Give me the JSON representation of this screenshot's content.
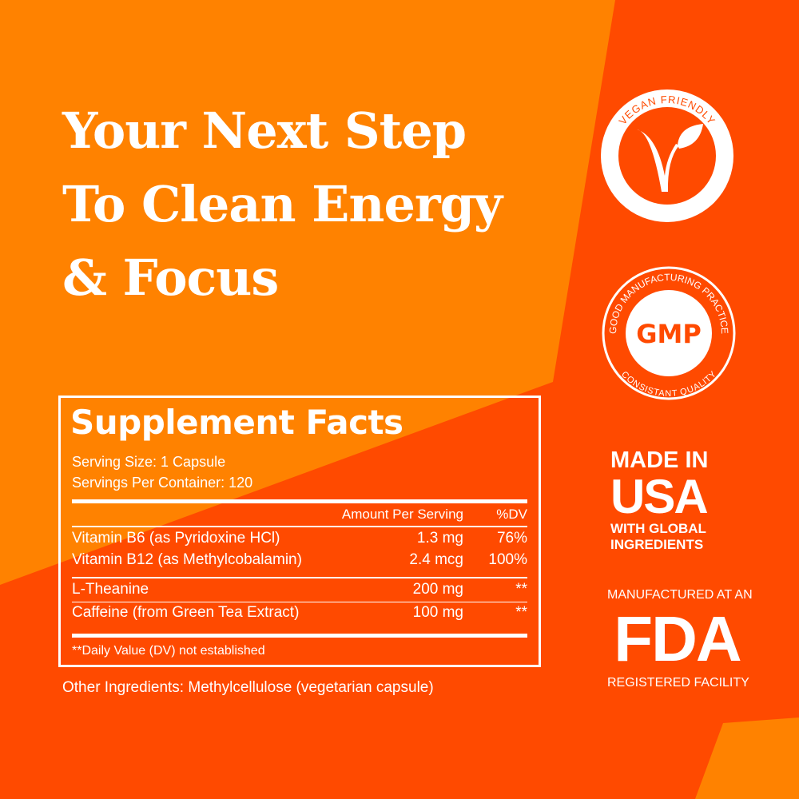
{
  "colors": {
    "orange": "#ff8200",
    "red_orange": "#ff4a00",
    "text": "#ffffff"
  },
  "headline": [
    "Your Next Step",
    "To Clean Energy",
    "& Focus"
  ],
  "supplement_facts": {
    "title": "Supplement Facts",
    "serving_size": "Serving Size: 1 Capsule",
    "servings_per_container": "Servings Per Container: 120",
    "col_amount": "Amount Per Serving",
    "col_dv": "%DV",
    "rows": [
      {
        "name": "Vitamin B6 (as Pyridoxine HCl)",
        "amount": "1.3 mg",
        "dv": "76%"
      },
      {
        "name": "Vitamin B12 (as Methylcobalamin)",
        "amount": "2.4 mcg",
        "dv": "100%"
      },
      {
        "name": "L-Theanine",
        "amount": "200 mg",
        "dv": "**"
      },
      {
        "name": "Caffeine (from Green Tea Extract)",
        "amount": "100 mg",
        "dv": "**"
      }
    ],
    "footnote": "**Daily Value (DV) not established"
  },
  "other_ingredients": "Other Ingredients: Methylcellulose (vegetarian capsule)",
  "badges": {
    "vegan": {
      "text": "VEGAN FRIENDLY",
      "icon": "vegan-v-leaf-icon"
    },
    "gmp": {
      "center": "GMP",
      "top": "GOOD MANUFACTURING PRACTICE",
      "bottom": "CONSISTANT QUALITY"
    },
    "usa": {
      "line1": "MADE IN",
      "line2": "USA",
      "line3": "WITH GLOBAL",
      "line4": "INGREDIENTS"
    },
    "fda": {
      "line1": "MANUFACTURED AT AN",
      "line2": "FDA",
      "line3": "REGISTERED FACILITY"
    }
  }
}
